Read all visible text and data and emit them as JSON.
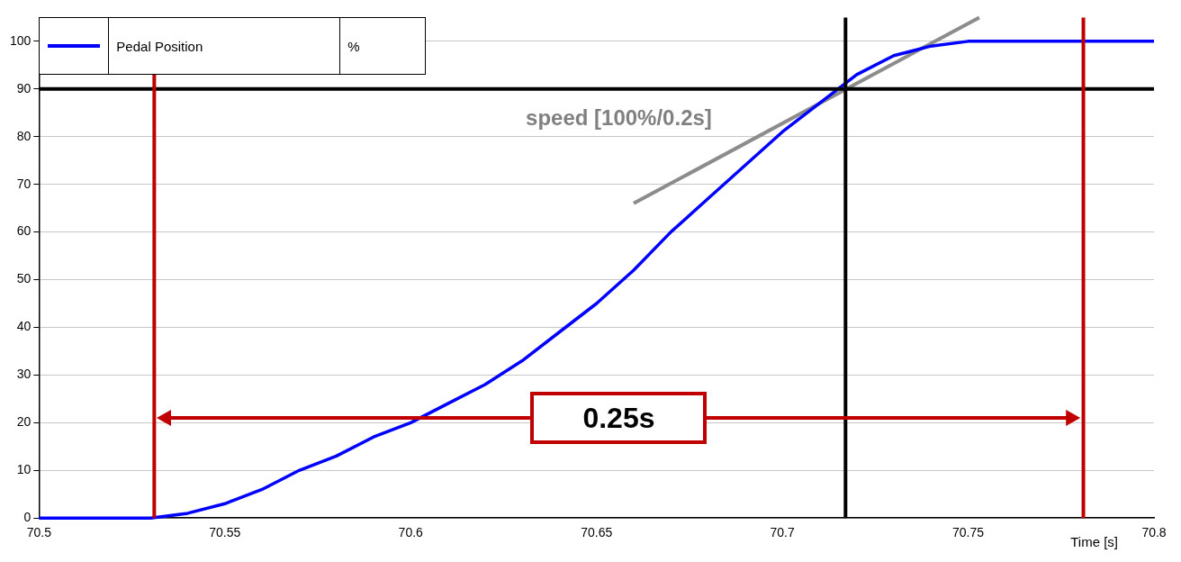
{
  "chart_data": {
    "type": "line",
    "xlabel": "Time [s]",
    "ylabel": "%",
    "xlim": [
      70.5,
      70.8
    ],
    "xticks": [
      70.5,
      70.55,
      70.6,
      70.65,
      70.7,
      70.75,
      70.8
    ],
    "ylim": [
      0,
      105
    ],
    "yticks": [
      0,
      10,
      20,
      30,
      40,
      50,
      60,
      70,
      80,
      90,
      100
    ],
    "grid": "y",
    "legend": "top left",
    "marker": "none",
    "line_style": "solid",
    "series": [
      {
        "name": "Pedal Position",
        "color": "#0000ff",
        "x": [
          70.5,
          70.53,
          70.54,
          70.55,
          70.56,
          70.57,
          70.58,
          70.59,
          70.6,
          70.61,
          70.62,
          70.63,
          70.64,
          70.65,
          70.66,
          70.67,
          70.68,
          70.69,
          70.7,
          70.71,
          70.72,
          70.73,
          70.74,
          70.75,
          70.8
        ],
        "values": [
          0,
          0,
          1,
          3,
          6,
          10,
          13,
          17,
          20,
          24,
          28,
          33,
          39,
          45,
          52,
          60,
          67,
          74,
          81,
          87,
          93,
          97,
          99,
          100,
          100
        ]
      },
      {
        "type": "line",
        "color": "#8c8c8c",
        "x": [
          70.66,
          70.753
        ],
        "values": [
          66,
          105
        ]
      }
    ],
    "ref_lines": [
      {
        "axis": "y",
        "value": 90,
        "color": "#000000"
      },
      {
        "axis": "x",
        "value": 70.717,
        "color": "#000000"
      },
      {
        "axis": "x",
        "value": 70.531,
        "color": "#c00000"
      },
      {
        "axis": "x",
        "value": 70.781,
        "color": "#c00000"
      }
    ],
    "annotations": [
      "speed [100%/0.2s]",
      "0.25s"
    ]
  }
}
